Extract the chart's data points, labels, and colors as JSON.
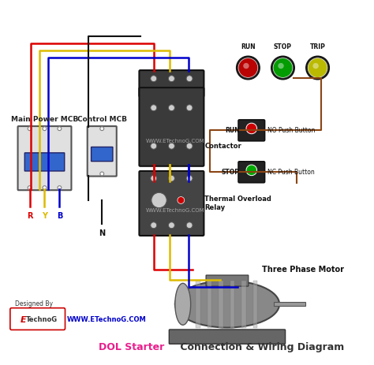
{
  "title": "DOL Starter Connection & Wiring Diagram",
  "title_color_dol": "#e91e8c",
  "title_color_rest": "#333333",
  "bg_color": "#ffffff",
  "labels": {
    "main_mcb": "Main Power MCB",
    "control_mcb": "Control MCB",
    "contactor": "Contactor",
    "thermal_relay": "Thermal Overload\nRelay",
    "motor": "Three Phase Motor",
    "run_indicator": "RUN",
    "stop_indicator": "STOP",
    "trip_indicator": "TRIP",
    "run_button": "RUN",
    "stop_button": "STOP",
    "no_push": "NO Push Button",
    "nc_push": "NC Push Button",
    "phase_r": "R",
    "phase_y": "Y",
    "phase_b": "B",
    "neutral": "N",
    "designed_by": "Designed By",
    "website": "WWW.ETechnoG.COM",
    "watermark": "WWW.ETechnoG.COM"
  },
  "colors": {
    "red_wire": "#dd0000",
    "yellow_wire": "#ddbb00",
    "blue_wire": "#0000cc",
    "black_wire": "#111111",
    "brown_wire": "#8B4513",
    "mcb_body": "#e0e0e0",
    "mcb_blue": "#3366cc",
    "contactor_body": "#333333",
    "relay_body": "#444444",
    "motor_body": "#888888",
    "indicator_red": "#cc0000",
    "indicator_green": "#00aa00",
    "indicator_yellow": "#cccc00",
    "button_red": "#cc0000",
    "button_green": "#00aa00",
    "button_body": "#222222"
  }
}
